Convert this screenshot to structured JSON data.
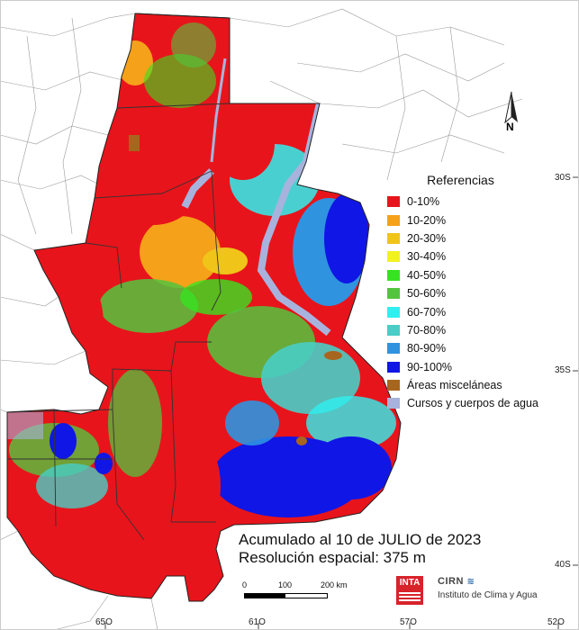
{
  "map": {
    "legend": {
      "title": "Referencias",
      "items": [
        {
          "label": "0-10%",
          "color": "#e8141b"
        },
        {
          "label": "10-20%",
          "color": "#f5a11a"
        },
        {
          "label": "20-30%",
          "color": "#f0c419"
        },
        {
          "label": "30-40%",
          "color": "#f2f21e"
        },
        {
          "label": "40-50%",
          "color": "#36e320"
        },
        {
          "label": "50-60%",
          "color": "#52c43e"
        },
        {
          "label": "60-70%",
          "color": "#2ef0f0"
        },
        {
          "label": "70-80%",
          "color": "#49cdc6"
        },
        {
          "label": "80-90%",
          "color": "#2f93e0"
        },
        {
          "label": "90-100%",
          "color": "#1016e6"
        },
        {
          "label": "Áreas misceláneas",
          "color": "#a8651e"
        },
        {
          "label": "Cursos y cuerpos de agua",
          "color": "#a7b3dc"
        }
      ]
    },
    "latitude_labels": [
      "30S",
      "35S",
      "40S"
    ],
    "longitude_labels": [
      "65O",
      "61O",
      "57O",
      "52O"
    ],
    "caption_line1": "Acumulado al 10 de JULIO de 2023",
    "caption_line2": "Resolución espacial: 375 m",
    "scale": {
      "labels": [
        "0",
        "100",
        "200 km"
      ]
    },
    "north_label": "N",
    "logos": {
      "inta": "INTA",
      "cirn": "CIRN",
      "institute": "Instituto de Clima y Agua"
    }
  }
}
